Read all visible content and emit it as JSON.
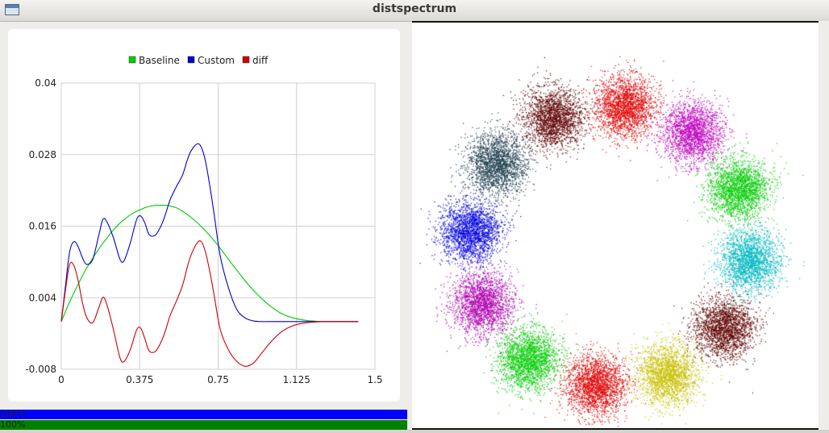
{
  "window": {
    "title": "distspectrum"
  },
  "chart_data": {
    "type": "line",
    "title": "",
    "xlabel": "",
    "ylabel": "",
    "xlim": [
      0,
      1.5
    ],
    "ylim": [
      -0.008,
      0.04
    ],
    "x_ticks": [
      0,
      0.375,
      0.75,
      1.125,
      1.5
    ],
    "x_tick_labels": [
      "0",
      "0.375",
      "0.75",
      "1.125",
      "1.5"
    ],
    "y_ticks": [
      -0.008,
      0.004,
      0.016,
      0.028,
      0.04
    ],
    "y_tick_labels": [
      "-0.008",
      "0.004",
      "0.016",
      "0.028",
      "0.04"
    ],
    "grid": true,
    "legend_position": "top",
    "x": [
      0,
      0.02,
      0.04,
      0.06,
      0.08,
      0.1,
      0.12,
      0.15,
      0.18,
      0.2,
      0.22,
      0.25,
      0.28,
      0.3,
      0.33,
      0.36,
      0.38,
      0.4,
      0.42,
      0.45,
      0.48,
      0.5,
      0.52,
      0.55,
      0.58,
      0.6,
      0.62,
      0.65,
      0.67,
      0.69,
      0.71,
      0.73,
      0.76,
      0.8,
      0.84,
      0.88,
      0.92,
      0.96,
      1.0,
      1.05,
      1.1,
      1.15,
      1.2,
      1.25,
      1.3,
      1.35,
      1.4,
      1.42
    ],
    "series": [
      {
        "name": "Baseline",
        "color": "#00cc00",
        "values": [
          0,
          0.0017,
          0.0033,
          0.0048,
          0.0062,
          0.0076,
          0.0089,
          0.0106,
          0.0122,
          0.0132,
          0.0141,
          0.0154,
          0.0165,
          0.0171,
          0.0179,
          0.0185,
          0.0188,
          0.0191,
          0.0193,
          0.0195,
          0.0195,
          0.0195,
          0.0194,
          0.0191,
          0.0185,
          0.018,
          0.0175,
          0.0166,
          0.0159,
          0.0152,
          0.0144,
          0.0136,
          0.0123,
          0.0104,
          0.0086,
          0.0068,
          0.0052,
          0.0038,
          0.0026,
          0.0014,
          0.0007,
          0.0003,
          0.0001,
          0,
          0,
          0,
          0,
          0
        ]
      },
      {
        "name": "Custom",
        "color": "#0000cc",
        "values": [
          0,
          0.006,
          0.0117,
          0.0134,
          0.0126,
          0.0108,
          0.0096,
          0.0104,
          0.0146,
          0.0172,
          0.0166,
          0.014,
          0.0105,
          0.0102,
          0.0132,
          0.0171,
          0.0177,
          0.0165,
          0.0146,
          0.0145,
          0.0163,
          0.0182,
          0.0204,
          0.0226,
          0.0246,
          0.0268,
          0.0286,
          0.0298,
          0.0292,
          0.0268,
          0.0228,
          0.0182,
          0.011,
          0.0056,
          0.002,
          0.0006,
          0.0001,
          0,
          0,
          0,
          0,
          0,
          0,
          0,
          0,
          0,
          0,
          0
        ]
      },
      {
        "name": "diff",
        "color": "#cc0000",
        "values": [
          0,
          0.0053,
          0.0096,
          0.0094,
          0.007,
          0.0034,
          0.0008,
          -0.0002,
          0.0024,
          0.0041,
          0.0026,
          -0.0014,
          -0.006,
          -0.0067,
          -0.0047,
          -0.0014,
          -0.0011,
          -0.0029,
          -0.0049,
          -0.005,
          -0.0032,
          -0.0013,
          0.001,
          0.0034,
          0.0061,
          0.0088,
          0.0111,
          0.0132,
          0.0134,
          0.0116,
          0.0084,
          0.0046,
          -0.0013,
          -0.0048,
          -0.0067,
          -0.0075,
          -0.0069,
          -0.0052,
          -0.0035,
          -0.0018,
          -0.0008,
          -0.0003,
          -0.0001,
          0,
          0,
          0,
          0,
          0
        ]
      }
    ]
  },
  "progress": [
    {
      "label": "100%",
      "value": 1.0
    },
    {
      "label": "100%",
      "value": 1.0
    }
  ],
  "scatter": {
    "clusters": [
      {
        "color": "#600000"
      },
      {
        "color": "#e00000"
      },
      {
        "color": "#c000c0"
      },
      {
        "color": "#00cc00"
      },
      {
        "color": "#00b8c0"
      },
      {
        "color": "#600000"
      },
      {
        "color": "#c8c000"
      },
      {
        "color": "#e00000"
      },
      {
        "color": "#00cc00"
      },
      {
        "color": "#b000b0"
      },
      {
        "color": "#0000e0"
      },
      {
        "color": "#204050"
      }
    ]
  }
}
